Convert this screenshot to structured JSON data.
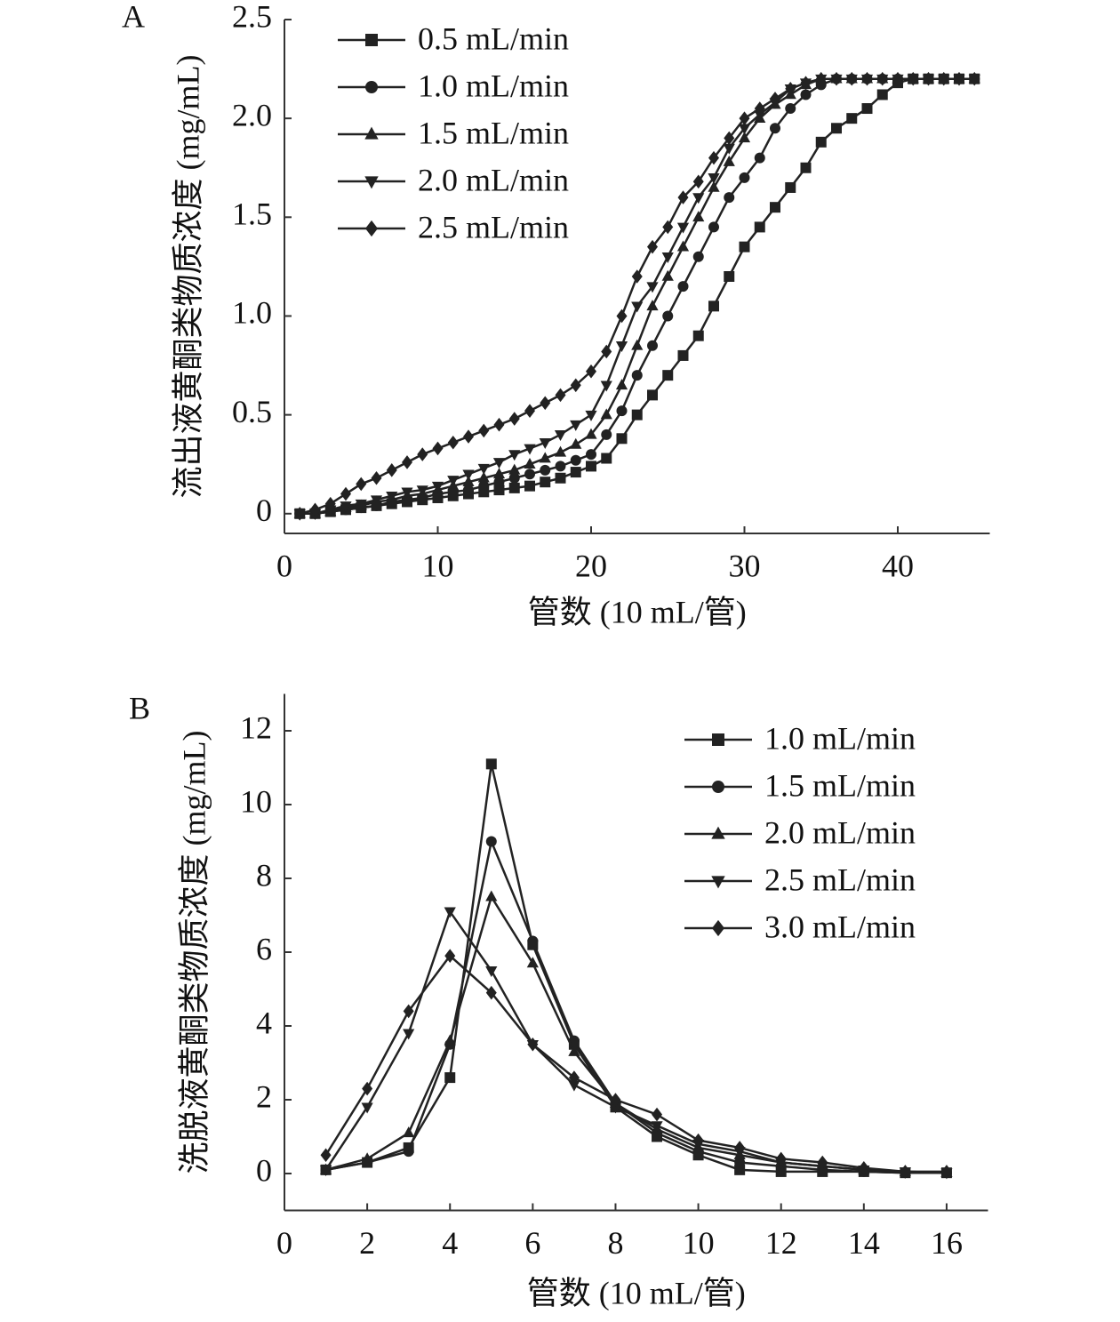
{
  "chart_data": [
    {
      "type": "line",
      "panel_label": "A",
      "xlabel": "管数 (10 mL/管)",
      "ylabel": "流出液黄酮类物质浓度 (mg/mL)",
      "x": [
        1,
        2,
        3,
        4,
        5,
        6,
        7,
        8,
        9,
        10,
        11,
        12,
        13,
        14,
        15,
        16,
        17,
        18,
        19,
        20,
        21,
        22,
        23,
        24,
        25,
        26,
        27,
        28,
        29,
        30,
        31,
        32,
        33,
        34,
        35,
        36,
        37,
        38,
        39,
        40,
        41,
        42,
        43,
        44,
        45
      ],
      "xlim": [
        0,
        46
      ],
      "xticks": [
        0,
        10,
        20,
        30,
        40
      ],
      "ylim": [
        -0.1,
        2.5
      ],
      "yticks": [
        0,
        0.5,
        {
          "value": 1,
          "label": "1.0"
        },
        1.5,
        {
          "value": 2,
          "label": "2.0"
        },
        2.5
      ],
      "legend": "upper left",
      "series": [
        {
          "name": "0.5 mL/min",
          "color": "#222222",
          "marker": "square",
          "values": [
            0,
            0,
            0.01,
            0.02,
            0.03,
            0.04,
            0.05,
            0.06,
            0.07,
            0.08,
            0.09,
            0.1,
            0.11,
            0.12,
            0.13,
            0.14,
            0.16,
            0.18,
            0.21,
            0.24,
            0.28,
            0.38,
            0.5,
            0.6,
            0.7,
            0.8,
            0.9,
            1.05,
            1.2,
            1.35,
            1.45,
            1.55,
            1.65,
            1.75,
            1.88,
            1.95,
            2.0,
            2.05,
            2.12,
            2.18,
            2.2,
            2.2,
            2.2,
            2.2,
            2.2
          ]
        },
        {
          "name": "1.0 mL/min",
          "color": "#222222",
          "marker": "circle",
          "values": [
            0,
            0,
            0.01,
            0.02,
            0.03,
            0.04,
            0.06,
            0.07,
            0.08,
            0.1,
            0.11,
            0.12,
            0.14,
            0.16,
            0.18,
            0.2,
            0.22,
            0.24,
            0.27,
            0.3,
            0.4,
            0.52,
            0.7,
            0.85,
            1.0,
            1.15,
            1.3,
            1.45,
            1.6,
            1.7,
            1.8,
            1.95,
            2.05,
            2.12,
            2.17,
            2.2,
            2.2,
            2.2,
            2.2,
            2.2,
            2.2,
            2.2,
            2.2,
            2.2,
            2.2
          ]
        },
        {
          "name": "1.5 mL/min",
          "color": "#222222",
          "marker": "triangle-up",
          "values": [
            0,
            0,
            0.01,
            0.03,
            0.04,
            0.06,
            0.07,
            0.09,
            0.1,
            0.12,
            0.14,
            0.16,
            0.18,
            0.2,
            0.22,
            0.25,
            0.28,
            0.31,
            0.35,
            0.4,
            0.5,
            0.65,
            0.85,
            1.05,
            1.2,
            1.35,
            1.5,
            1.65,
            1.78,
            1.9,
            2.0,
            2.07,
            2.12,
            2.17,
            2.2,
            2.2,
            2.2,
            2.2,
            2.2,
            2.2,
            2.2,
            2.2,
            2.2,
            2.2,
            2.2
          ]
        },
        {
          "name": "2.0 mL/min",
          "color": "#222222",
          "marker": "triangle-down",
          "values": [
            0,
            0,
            0.02,
            0.04,
            0.05,
            0.07,
            0.09,
            0.11,
            0.12,
            0.14,
            0.17,
            0.2,
            0.23,
            0.26,
            0.3,
            0.33,
            0.36,
            0.4,
            0.45,
            0.5,
            0.65,
            0.85,
            1.05,
            1.15,
            1.3,
            1.45,
            1.6,
            1.7,
            1.85,
            1.95,
            2.02,
            2.08,
            2.15,
            2.18,
            2.2,
            2.2,
            2.2,
            2.2,
            2.2,
            2.2,
            2.2,
            2.2,
            2.2,
            2.2,
            2.2
          ]
        },
        {
          "name": "2.5 mL/min",
          "color": "#222222",
          "marker": "diamond",
          "values": [
            0,
            0.02,
            0.05,
            0.1,
            0.15,
            0.18,
            0.22,
            0.26,
            0.3,
            0.33,
            0.36,
            0.39,
            0.42,
            0.45,
            0.48,
            0.52,
            0.56,
            0.6,
            0.65,
            0.72,
            0.82,
            1.0,
            1.2,
            1.35,
            1.45,
            1.6,
            1.68,
            1.8,
            1.9,
            2.0,
            2.05,
            2.1,
            2.15,
            2.18,
            2.2,
            2.2,
            2.2,
            2.2,
            2.2,
            2.2,
            2.2,
            2.2,
            2.2,
            2.2,
            2.2
          ]
        }
      ]
    },
    {
      "type": "line",
      "panel_label": "B",
      "xlabel": "管数 (10 mL/管)",
      "ylabel": "洗脱液黄酮类物质浓度 (mg/mL)",
      "x": [
        1,
        2,
        3,
        4,
        5,
        6,
        7,
        8,
        9,
        10,
        11,
        12,
        13,
        14,
        15,
        16
      ],
      "xlim": [
        0,
        17
      ],
      "xticks": [
        0,
        2,
        4,
        6,
        8,
        10,
        12,
        14,
        16
      ],
      "ylim": [
        -1,
        13
      ],
      "yticks": [
        0,
        2,
        4,
        6,
        8,
        10,
        12
      ],
      "legend": "upper right",
      "series": [
        {
          "name": "1.0 mL/min",
          "color": "#222222",
          "marker": "square",
          "values": [
            0.1,
            0.3,
            0.7,
            2.6,
            11.1,
            6.2,
            3.5,
            1.8,
            1.0,
            0.5,
            0.1,
            0.05,
            0.05,
            0.05,
            0.02,
            0.02
          ]
        },
        {
          "name": "1.5 mL/min",
          "color": "#222222",
          "marker": "circle",
          "values": [
            0.1,
            0.3,
            0.6,
            3.5,
            9.0,
            6.3,
            3.6,
            1.9,
            1.1,
            0.6,
            0.3,
            0.2,
            0.1,
            0.05,
            0.02,
            0.02
          ]
        },
        {
          "name": "2.0 mL/min",
          "color": "#222222",
          "marker": "triangle-up",
          "values": [
            0.1,
            0.4,
            1.1,
            3.6,
            7.5,
            5.7,
            3.3,
            1.9,
            1.2,
            0.7,
            0.5,
            0.3,
            0.2,
            0.1,
            0.05,
            0.02
          ]
        },
        {
          "name": "2.5 mL/min",
          "color": "#222222",
          "marker": "triangle-down",
          "values": [
            0.1,
            1.8,
            3.8,
            7.1,
            5.5,
            3.5,
            2.4,
            1.8,
            1.3,
            0.8,
            0.6,
            0.3,
            0.2,
            0.1,
            0.05,
            0.02
          ]
        },
        {
          "name": "3.0 mL/min",
          "color": "#222222",
          "marker": "diamond",
          "values": [
            0.5,
            2.3,
            4.4,
            5.9,
            4.9,
            3.5,
            2.6,
            2.0,
            1.6,
            0.9,
            0.7,
            0.4,
            0.3,
            0.15,
            0.05,
            0.05
          ]
        }
      ]
    }
  ]
}
